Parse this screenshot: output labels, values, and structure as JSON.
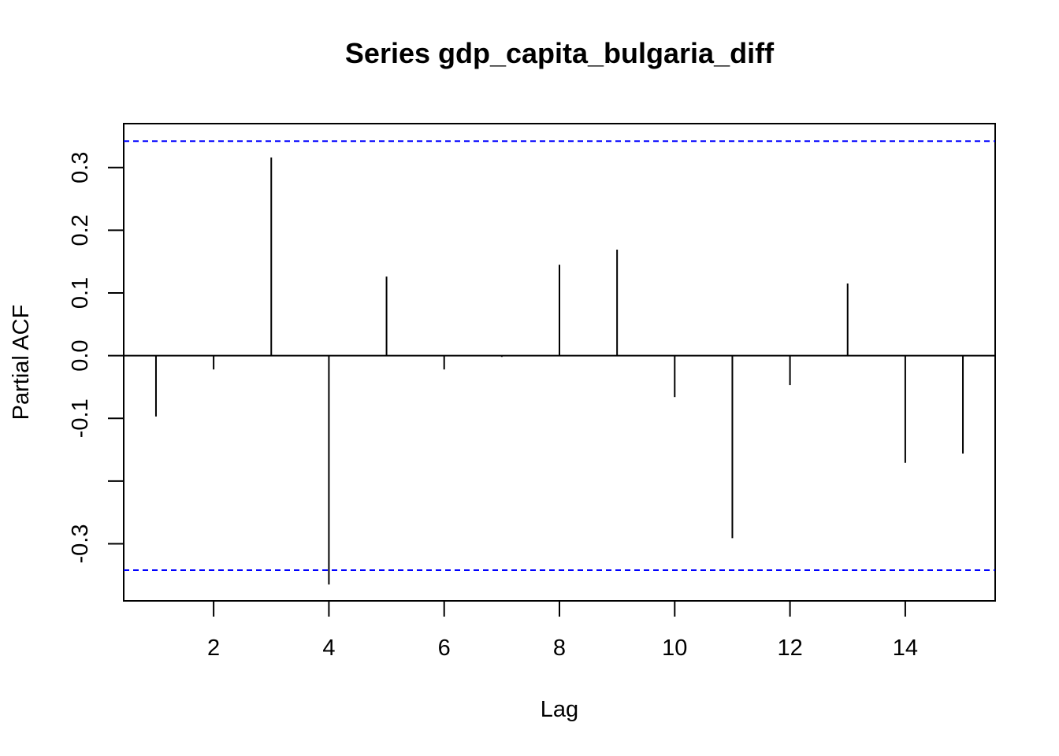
{
  "chart_data": {
    "type": "bar",
    "title": "Series  gdp_capita_bulgaria_diff",
    "xlabel": "Lag",
    "ylabel": "Partial ACF",
    "x": [
      1,
      2,
      3,
      4,
      5,
      6,
      7,
      8,
      9,
      10,
      11,
      12,
      13,
      14,
      15
    ],
    "values": [
      -0.097,
      -0.022,
      0.316,
      -0.365,
      0.126,
      -0.022,
      -0.002,
      0.145,
      0.169,
      -0.066,
      -0.291,
      -0.047,
      0.115,
      -0.171,
      -0.156
    ],
    "xlim": [
      0.44,
      15.56
    ],
    "ylim": [
      -0.391,
      0.37
    ],
    "xticks": [
      2,
      4,
      6,
      8,
      10,
      12,
      14
    ],
    "xtick_labels": [
      "2",
      "4",
      "6",
      "8",
      "10",
      "12",
      "14"
    ],
    "yticks": [
      -0.3,
      -0.2,
      -0.1,
      0.0,
      0.1,
      0.2,
      0.3
    ],
    "ytick_labels": [
      "-0.3",
      "",
      "-0.1",
      "0.0",
      "0.1",
      "0.2",
      "0.3"
    ],
    "confidence_bounds": [
      -0.342,
      0.342
    ],
    "confidence_color": "#0000ff",
    "grid": false,
    "legend": "none"
  }
}
